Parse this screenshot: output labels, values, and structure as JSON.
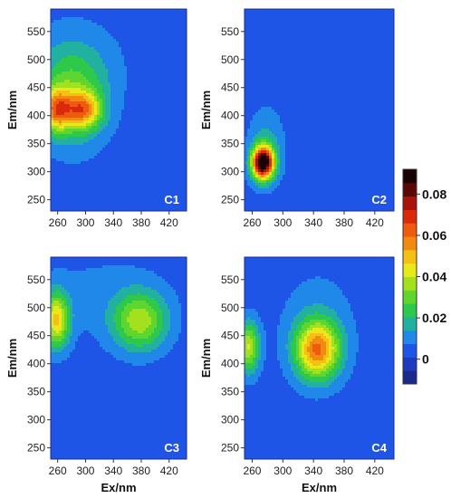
{
  "chart_data": {
    "type": "heatmap",
    "x_ticks": [
      260,
      300,
      340,
      380,
      420
    ],
    "y_ticks": [
      250,
      300,
      350,
      400,
      450,
      500,
      550
    ],
    "xlim": [
      250,
      445
    ],
    "ylim": [
      230,
      590
    ],
    "xlabel": "Ex/nm",
    "ylabel": "Em/nm",
    "colorbar": {
      "ticks": [
        0,
        0.02,
        0.04,
        0.06,
        0.08
      ],
      "tick_labels": [
        "0",
        "0.02",
        "0.04",
        "0.06",
        "0.08"
      ],
      "range": [
        -0.012,
        0.092
      ],
      "colors": [
        "#1a2a8a",
        "#1e3bbb",
        "#1f55e6",
        "#2088e8",
        "#22b0a0",
        "#2ec84a",
        "#5fd62f",
        "#a3e11e",
        "#e8e81a",
        "#f4c016",
        "#f28a12",
        "#ee5a10",
        "#d92a0c",
        "#a8140a",
        "#5a0806",
        "#1a0202"
      ]
    },
    "panels": [
      {
        "label": "C1",
        "background": 0.004,
        "peaks": [
          {
            "ex": 258,
            "em": 410,
            "amp": 0.04,
            "sx": 14,
            "sy": 26
          },
          {
            "ex": 296,
            "em": 410,
            "amp": 0.038,
            "sx": 18,
            "sy": 22
          },
          {
            "ex": 282,
            "em": 430,
            "amp": 0.025,
            "sx": 34,
            "sy": 58
          },
          {
            "ex": 280,
            "em": 500,
            "amp": 0.006,
            "sx": 55,
            "sy": 55
          }
        ]
      },
      {
        "label": "C2",
        "background": 0.004,
        "peaks": [
          {
            "ex": 274,
            "em": 316,
            "amp": 0.089,
            "sx": 10,
            "sy": 20
          },
          {
            "ex": 278,
            "em": 345,
            "amp": 0.012,
            "sx": 16,
            "sy": 45
          }
        ]
      },
      {
        "label": "C3",
        "background": 0.004,
        "peaks": [
          {
            "ex": 258,
            "em": 478,
            "amp": 0.042,
            "sx": 13,
            "sy": 34
          },
          {
            "ex": 378,
            "em": 476,
            "amp": 0.032,
            "sx": 27,
            "sy": 36
          },
          {
            "ex": 322,
            "em": 520,
            "amp": 0.005,
            "sx": 70,
            "sy": 60
          }
        ]
      },
      {
        "label": "C4",
        "background": 0.004,
        "peaks": [
          {
            "ex": 255,
            "em": 430,
            "amp": 0.036,
            "sx": 10,
            "sy": 32
          },
          {
            "ex": 345,
            "em": 425,
            "amp": 0.052,
            "sx": 20,
            "sy": 36
          },
          {
            "ex": 345,
            "em": 470,
            "amp": 0.007,
            "sx": 35,
            "sy": 70
          }
        ]
      }
    ]
  }
}
